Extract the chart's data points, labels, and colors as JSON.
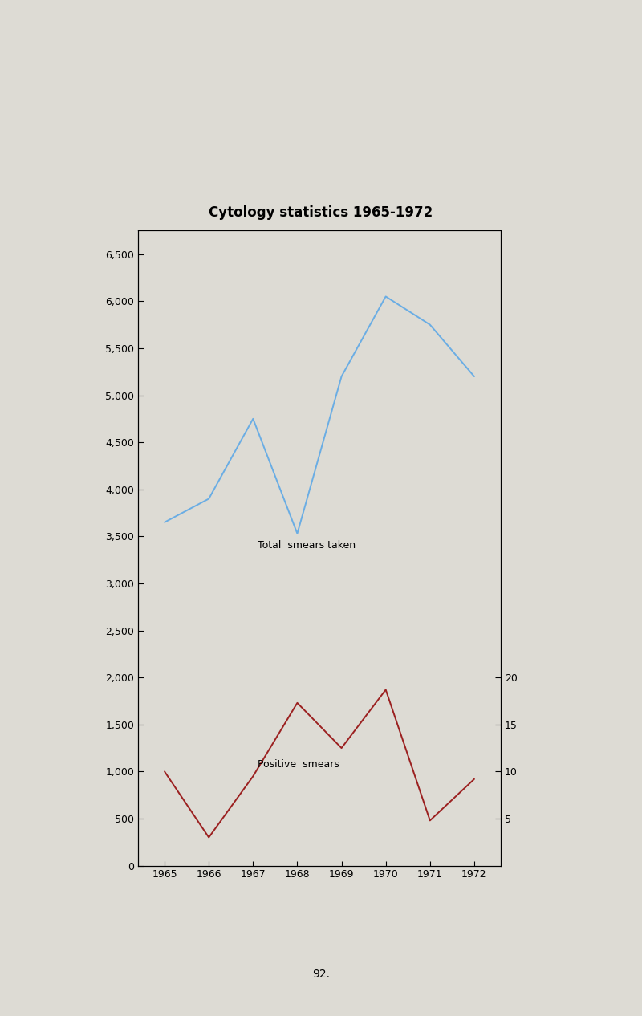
{
  "title": "Cytology statistics 1965-1972",
  "years": [
    1965,
    1966,
    1967,
    1968,
    1969,
    1970,
    1971,
    1972
  ],
  "total_smears": [
    3650,
    3900,
    4750,
    3530,
    5200,
    6050,
    5750,
    5200
  ],
  "positive_smears": [
    1000,
    300,
    950,
    1730,
    1250,
    1870,
    480,
    920
  ],
  "blue_color": "#6aade4",
  "red_color": "#9b2020",
  "page_background": "#dddbd4",
  "plot_background": "#dddbd4",
  "total_label": "Total  smears taken",
  "positive_label": "Positive  smears",
  "ylim_left": [
    0,
    6750
  ],
  "xlim": [
    1964.4,
    1972.6
  ],
  "yticks_left": [
    0,
    500,
    1000,
    1500,
    2000,
    2500,
    3000,
    3500,
    4000,
    4500,
    5000,
    5500,
    6000,
    6500
  ],
  "yticks_right_vals": [
    500,
    1000,
    1500,
    2000
  ],
  "yticks_right_labels": [
    "5",
    "10",
    "15",
    "20"
  ],
  "page_number": "92.",
  "title_fontsize": 12,
  "label_fontsize": 9,
  "tick_fontsize": 9
}
